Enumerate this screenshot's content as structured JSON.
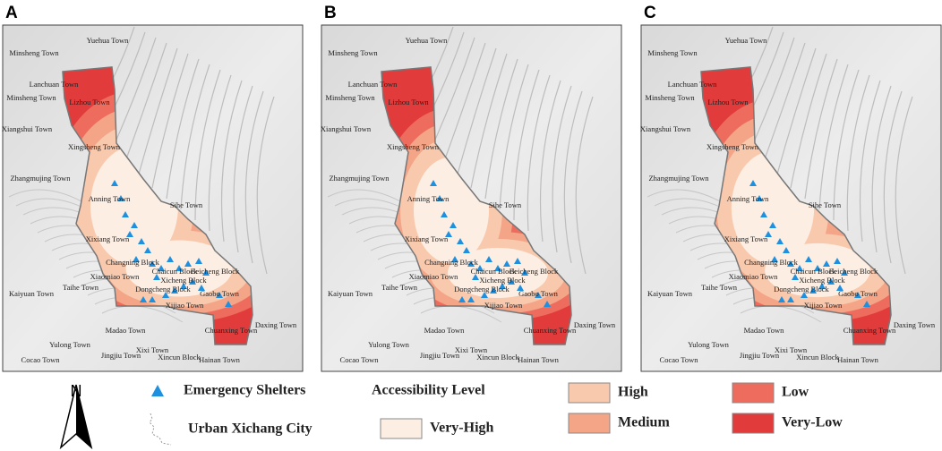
{
  "panels": [
    {
      "label": "A"
    },
    {
      "label": "B"
    },
    {
      "label": "C"
    }
  ],
  "towns": [
    "Yuehua Town",
    "Minsheng Town",
    "Lanchuan Town",
    "Minsheng Town",
    "Lizhou Town",
    "Xiangshui Town",
    "Xingsheng Town",
    "Zhangmujing Town",
    "Anning Town",
    "Sihe Town",
    "Xixiang Town",
    "Changning Block",
    "Xiaomiao Town",
    "Chaicun Block",
    "Beicheng Block",
    "Xicheng Block",
    "Dongcheng Block",
    "Gaobo Town",
    "Kaiyuan Town",
    "Taihe Town",
    "Xijiao Town",
    "Daxing Town",
    "Madao Town",
    "Chuanxing Town",
    "Yulong Town",
    "Xixi Town",
    "Cocao Town",
    "Jingjiu Town",
    "Xincun Block",
    "Hainan Town"
  ],
  "legend": {
    "north": "N",
    "shelters": "Emergency Shelters",
    "urban": "Urban Xichang City",
    "title": "Accessibility Level",
    "levels": [
      {
        "label": "Very-High",
        "color": "#fdeee3"
      },
      {
        "label": "High",
        "color": "#f9c9ad"
      },
      {
        "label": "Medium",
        "color": "#f4a487"
      },
      {
        "label": "Low",
        "color": "#ee6c5d"
      },
      {
        "label": "Very-Low",
        "color": "#e23b3b"
      }
    ]
  }
}
